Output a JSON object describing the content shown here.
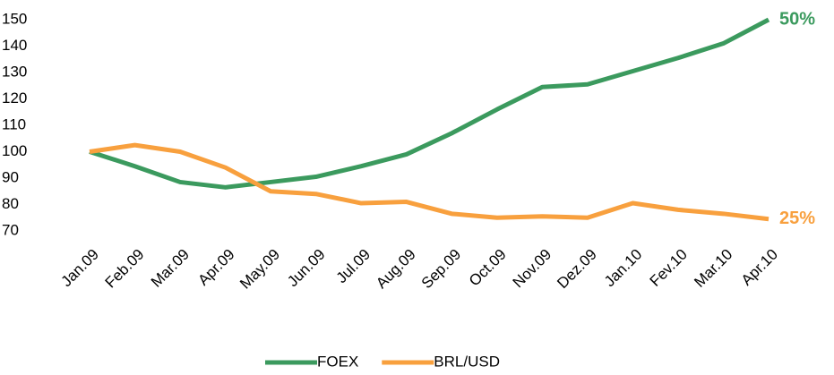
{
  "chart_data": {
    "type": "line",
    "categories": [
      "Jan.09",
      "Feb.09",
      "Mar.09",
      "Apr.09",
      "May.09",
      "Jun.09",
      "Jul.09",
      "Aug.09",
      "Sep.09",
      "Oct.09",
      "Nov.09",
      "Dez.09",
      "Jan.10",
      "Fev.10",
      "Mar.10",
      "Apr.10"
    ],
    "series": [
      {
        "name": "FOEX",
        "color": "#3b9a5e",
        "end_label": "50%",
        "values": [
          100,
          94.5,
          88.5,
          86.5,
          88.5,
          90.5,
          94.5,
          99,
          107,
          116,
          124.5,
          125.5,
          130.5,
          135.5,
          141,
          150
        ]
      },
      {
        "name": "BRL/USD",
        "color": "#f8a03e",
        "end_label": "25%",
        "values": [
          100,
          102.5,
          100,
          94,
          85,
          84,
          80.5,
          81,
          76.5,
          75,
          75.5,
          75,
          80.5,
          78,
          76.5,
          74.5
        ]
      }
    ],
    "ylim": [
      70,
      150
    ],
    "yticks": [
      70,
      80,
      90,
      100,
      110,
      120,
      130,
      140,
      150
    ],
    "grid": false,
    "legend": "bottom"
  }
}
